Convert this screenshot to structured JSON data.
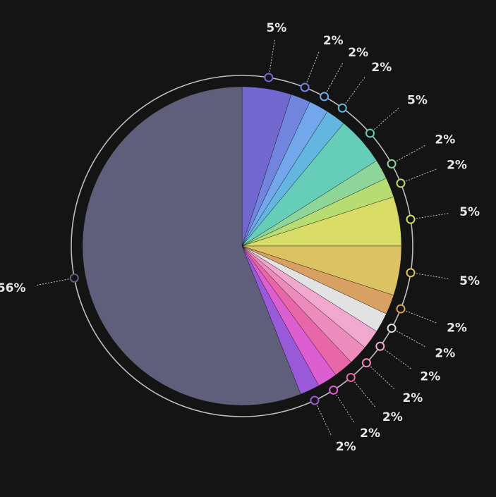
{
  "chart_data": {
    "type": "pie",
    "slices": [
      {
        "value": 5,
        "label": "5%",
        "color": "#7169d0"
      },
      {
        "value": 2,
        "label": "2%",
        "color": "#7185de"
      },
      {
        "value": 2,
        "label": "2%",
        "color": "#72a7ec"
      },
      {
        "value": 2,
        "label": "2%",
        "color": "#62b6e0"
      },
      {
        "value": 5,
        "label": "5%",
        "color": "#65cdb8"
      },
      {
        "value": 2,
        "label": "2%",
        "color": "#8ed59a"
      },
      {
        "value": 2,
        "label": "2%",
        "color": "#b6dc72"
      },
      {
        "value": 5,
        "label": "5%",
        "color": "#dadc68"
      },
      {
        "value": 5,
        "label": "5%",
        "color": "#dcc262"
      },
      {
        "value": 2,
        "label": "2%",
        "color": "#d8a063"
      },
      {
        "value": 2,
        "label": "2%",
        "color": "#e2e2e2"
      },
      {
        "value": 2,
        "label": "2%",
        "color": "#f1a8cf"
      },
      {
        "value": 2,
        "label": "2%",
        "color": "#ec8cbd"
      },
      {
        "value": 2,
        "label": "2%",
        "color": "#e867a8"
      },
      {
        "value": 2,
        "label": "2%",
        "color": "#dd5ed0"
      },
      {
        "value": 2,
        "label": "2%",
        "color": "#9a59d8"
      },
      {
        "value": 56,
        "label": "56%",
        "color": "#5f5f7c"
      }
    ],
    "start_angle": "12 o'clock",
    "direction": "clockwise",
    "background": "#141414",
    "ring_color": "#bdbdbd",
    "label_color": "#e6e6e6"
  }
}
